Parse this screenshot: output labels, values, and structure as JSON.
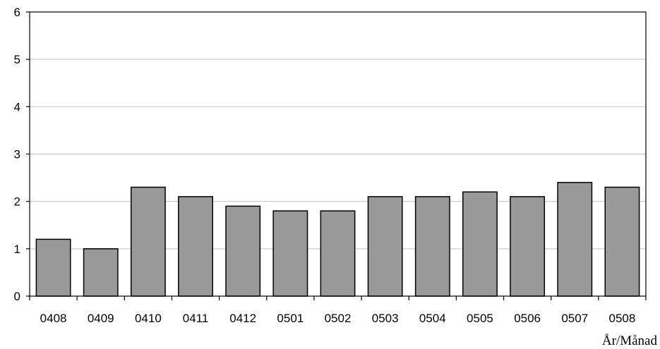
{
  "chart_data": {
    "type": "bar",
    "title": "",
    "xlabel": "År/Månad",
    "ylabel": "",
    "categories": [
      "0408",
      "0409",
      "0410",
      "0411",
      "0412",
      "0501",
      "0502",
      "0503",
      "0504",
      "0505",
      "0506",
      "0507",
      "0508"
    ],
    "values": [
      1.2,
      1.0,
      2.3,
      2.1,
      1.9,
      1.8,
      1.8,
      2.1,
      2.1,
      2.2,
      2.1,
      2.4,
      2.3
    ],
    "ylim": [
      0,
      6
    ],
    "yticks": [
      "0",
      "1",
      "2",
      "3",
      "4",
      "5",
      "6"
    ],
    "grid": true,
    "legend": "none",
    "colors": {
      "bar": "#999999",
      "bar_stroke": "#000000",
      "grid": "#c0c0c0",
      "axis": "#000000"
    }
  }
}
